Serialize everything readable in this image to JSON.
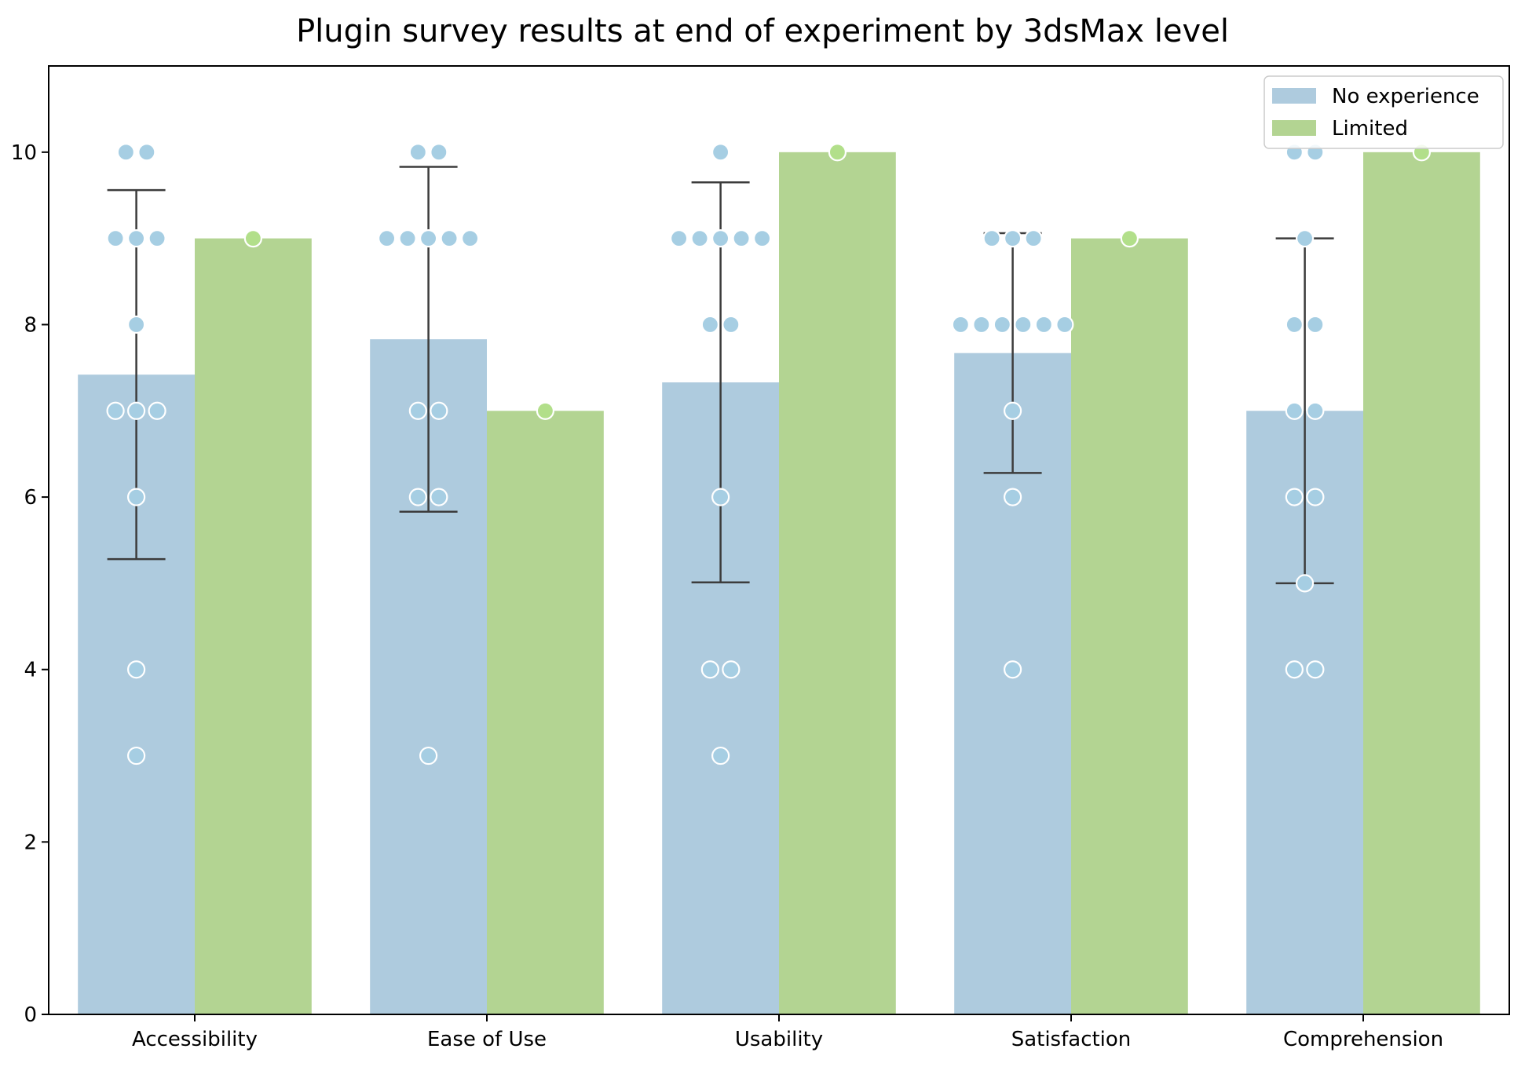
{
  "chart_data": {
    "type": "bar",
    "title": "Plugin survey results at end of experiment by 3dsMax level",
    "xlabel": "",
    "ylabel": "",
    "categories": [
      "Accessibility",
      "Ease of Use",
      "Usability",
      "Satisfaction",
      "Comprehension"
    ],
    "ylim": [
      0,
      11
    ],
    "yticks": [
      0,
      2,
      4,
      6,
      8,
      10
    ],
    "legend_position": "top-right",
    "grid": false,
    "series": [
      {
        "name": "No experience",
        "color": "#aecbde",
        "point_color": "#a6cee3",
        "values": [
          7.42,
          7.83,
          7.33,
          7.67,
          7.0
        ],
        "error_low": [
          5.28,
          5.83,
          5.01,
          6.28,
          5.0
        ],
        "error_high": [
          9.56,
          9.83,
          9.65,
          9.06,
          9.0
        ],
        "points": [
          [
            10,
            10,
            9,
            9,
            9,
            8,
            7,
            7,
            7,
            6,
            4,
            3
          ],
          [
            10,
            10,
            9,
            9,
            9,
            9,
            9,
            7,
            7,
            6,
            6,
            3
          ],
          [
            10,
            9,
            9,
            9,
            9,
            9,
            8,
            8,
            6,
            4,
            4,
            3
          ],
          [
            9,
            9,
            9,
            8,
            8,
            8,
            8,
            8,
            8,
            7,
            6,
            4
          ],
          [
            10,
            10,
            9,
            8,
            8,
            7,
            7,
            6,
            6,
            5,
            4,
            4
          ]
        ]
      },
      {
        "name": "Limited",
        "color": "#b3d492",
        "point_color": "#b2df8a",
        "values": [
          9,
          7,
          10,
          9,
          10
        ],
        "points": [
          [
            9
          ],
          [
            7
          ],
          [
            10
          ],
          [
            9
          ],
          [
            10
          ]
        ]
      }
    ]
  }
}
